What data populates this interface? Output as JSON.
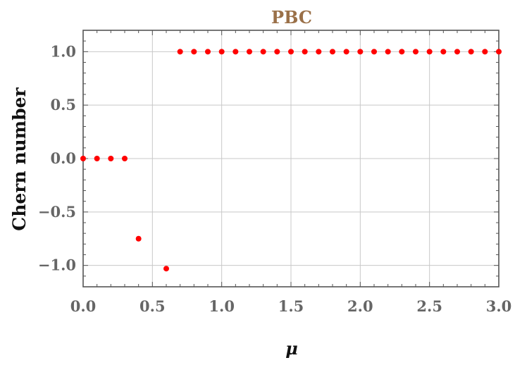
{
  "chart_data": {
    "type": "scatter",
    "title": "PBC",
    "xlabel": "μ",
    "ylabel": "Chern number",
    "xlim": [
      0.0,
      3.0
    ],
    "ylim": [
      -1.2,
      1.2
    ],
    "x_ticks": [
      "0.0",
      "0.5",
      "1.0",
      "1.5",
      "2.0",
      "2.5",
      "3.0"
    ],
    "y_ticks": [
      "1.0",
      "0.5",
      "0.0",
      "−0.5",
      "−1.0"
    ],
    "grid": true,
    "series": [
      {
        "color": "#ff0000",
        "points": [
          {
            "x": 0.0,
            "y": 0.0
          },
          {
            "x": 0.1,
            "y": 0.0
          },
          {
            "x": 0.2,
            "y": 0.0
          },
          {
            "x": 0.3,
            "y": 0.0
          },
          {
            "x": 0.4,
            "y": -0.75
          },
          {
            "x": 0.6,
            "y": -1.03
          },
          {
            "x": 0.7,
            "y": 1.0
          },
          {
            "x": 0.8,
            "y": 1.0
          },
          {
            "x": 0.9,
            "y": 1.0
          },
          {
            "x": 1.0,
            "y": 1.0
          },
          {
            "x": 1.1,
            "y": 1.0
          },
          {
            "x": 1.2,
            "y": 1.0
          },
          {
            "x": 1.3,
            "y": 1.0
          },
          {
            "x": 1.4,
            "y": 1.0
          },
          {
            "x": 1.5,
            "y": 1.0
          },
          {
            "x": 1.6,
            "y": 1.0
          },
          {
            "x": 1.7,
            "y": 1.0
          },
          {
            "x": 1.8,
            "y": 1.0
          },
          {
            "x": 1.9,
            "y": 1.0
          },
          {
            "x": 2.0,
            "y": 1.0
          },
          {
            "x": 2.1,
            "y": 1.0
          },
          {
            "x": 2.2,
            "y": 1.0
          },
          {
            "x": 2.3,
            "y": 1.0
          },
          {
            "x": 2.4,
            "y": 1.0
          },
          {
            "x": 2.5,
            "y": 1.0
          },
          {
            "x": 2.6,
            "y": 1.0
          },
          {
            "x": 2.7,
            "y": 1.0
          },
          {
            "x": 2.8,
            "y": 1.0
          },
          {
            "x": 2.9,
            "y": 1.0
          },
          {
            "x": 3.0,
            "y": 1.0
          }
        ]
      }
    ]
  }
}
